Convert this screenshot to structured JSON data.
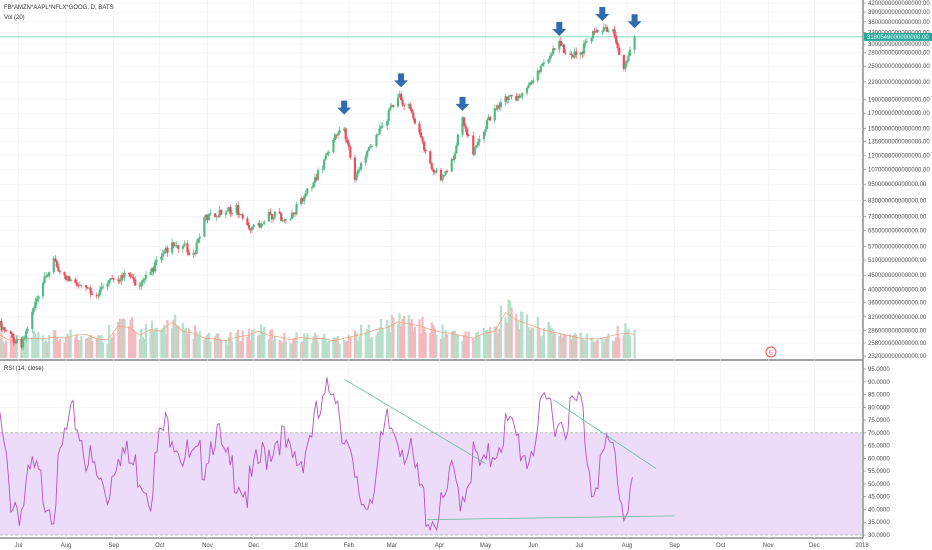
{
  "colors": {
    "up": "#53b987",
    "down": "#eb4d5c",
    "vol_up": "#b7dfc9",
    "vol_down": "#f4b8be",
    "vol_ma": "#f0a07a",
    "rsi_line": "#b452c2",
    "rsi_band": "#ecdcfa",
    "trendline": "#6bbfa0",
    "arrow": "#2f6db0",
    "price_line": "#5fd0a0",
    "price_tag": "#26a69a",
    "grid": "#eeeeee"
  },
  "legend": {
    "symbol": "FB*AMZN*AAPL*NFLX*GOOG, D, BATS",
    "volume": "Vol (20)",
    "rsi": "RSI (14, close)"
  },
  "badge": "E",
  "price_tag": "3180549000000000.00",
  "chart_data": [
    {
      "type": "candlestick",
      "title": "FB*AMZN*AAPL*NFLX*GOOG, D, BATS",
      "price_scale_labels": [
        "4200000000000000.00",
        "3900000000000000.00",
        "3600000000000000.00",
        "3300000000000000.00",
        "3000000000000000.00",
        "2800000000000000.00",
        "2500000000000000.00",
        "2200000000000000.00",
        "1900000000000000.00",
        "1700000000000000.00",
        "1500000000000000.00",
        "1350000000000000.00",
        "1200000000000000.00",
        "1070000000000000.00",
        "950000000000000.00",
        "830000000000000.00",
        "730000000000000.00",
        "650000000000000.00",
        "570000000000000.00",
        "510000000000000.00",
        "450000000000000.00",
        "400000000000000.00",
        "360000000000000.00",
        "320000000000000.00",
        "286000000000000.00",
        "258000000000000.00",
        "232000000000000.00"
      ],
      "current_price": 3180549000000000,
      "x_labels": [
        "Jul",
        "Aug",
        "Sep",
        "Oct",
        "Nov",
        "Dec",
        "2018",
        "Feb",
        "Mar",
        "Apr",
        "May",
        "Jun",
        "Jul",
        "Aug",
        "Sep",
        "Oct",
        "Nov",
        "Dec",
        "2018"
      ],
      "annotations": [
        "arrow",
        "arrow",
        "arrow",
        "arrow",
        "arrow",
        "arrow"
      ],
      "close_path": [
        [
          "2017-06-19",
          300000000000000
        ],
        [
          "2017-06-26",
          275000000000000
        ],
        [
          "2017-07-03",
          250000000000000
        ],
        [
          "2017-07-10",
          330000000000000
        ],
        [
          "2017-07-17",
          420000000000000
        ],
        [
          "2017-07-24",
          500000000000000
        ],
        [
          "2017-07-31",
          440000000000000
        ],
        [
          "2017-08-07",
          430000000000000
        ],
        [
          "2017-08-14",
          400000000000000
        ],
        [
          "2017-08-21",
          390000000000000
        ],
        [
          "2017-08-28",
          420000000000000
        ],
        [
          "2017-09-04",
          440000000000000
        ],
        [
          "2017-09-11",
          450000000000000
        ],
        [
          "2017-09-18",
          410000000000000
        ],
        [
          "2017-09-25",
          460000000000000
        ],
        [
          "2017-10-02",
          530000000000000
        ],
        [
          "2017-10-09",
          570000000000000
        ],
        [
          "2017-10-16",
          580000000000000
        ],
        [
          "2017-10-23",
          530000000000000
        ],
        [
          "2017-10-30",
          720000000000000
        ],
        [
          "2017-11-06",
          740000000000000
        ],
        [
          "2017-11-13",
          760000000000000
        ],
        [
          "2017-11-20",
          780000000000000
        ],
        [
          "2017-11-27",
          660000000000000
        ],
        [
          "2017-12-04",
          680000000000000
        ],
        [
          "2017-12-11",
          740000000000000
        ],
        [
          "2017-12-18",
          730000000000000
        ],
        [
          "2017-12-25",
          720000000000000
        ],
        [
          "2018-01-01",
          830000000000000
        ],
        [
          "2018-01-08",
          950000000000000
        ],
        [
          "2018-01-15",
          1100000000000000
        ],
        [
          "2018-01-22",
          1400000000000000
        ],
        [
          "2018-01-29",
          1500000000000000
        ],
        [
          "2018-02-05",
          1000000000000000
        ],
        [
          "2018-02-12",
          1200000000000000
        ],
        [
          "2018-02-19",
          1450000000000000
        ],
        [
          "2018-02-26",
          1650000000000000
        ],
        [
          "2018-03-05",
          1950000000000000
        ],
        [
          "2018-03-12",
          1800000000000000
        ],
        [
          "2018-03-19",
          1450000000000000
        ],
        [
          "2018-03-26",
          1100000000000000
        ],
        [
          "2018-04-02",
          1000000000000000
        ],
        [
          "2018-04-09",
          1150000000000000
        ],
        [
          "2018-04-16",
          1600000000000000
        ],
        [
          "2018-04-23",
          1250000000000000
        ],
        [
          "2018-04-30",
          1500000000000000
        ],
        [
          "2018-05-07",
          1750000000000000
        ],
        [
          "2018-05-14",
          1900000000000000
        ],
        [
          "2018-05-21",
          1950000000000000
        ],
        [
          "2018-05-28",
          2100000000000000
        ],
        [
          "2018-06-04",
          2400000000000000
        ],
        [
          "2018-06-11",
          2700000000000000
        ],
        [
          "2018-06-18",
          3000000000000000
        ],
        [
          "2018-06-25",
          2700000000000000
        ],
        [
          "2018-07-02",
          2800000000000000
        ],
        [
          "2018-07-09",
          3200000000000000
        ],
        [
          "2018-07-16",
          3400000000000000
        ],
        [
          "2018-07-23",
          3300000000000000
        ],
        [
          "2018-07-30",
          2400000000000000
        ],
        [
          "2018-08-06",
          3150000000000000
        ]
      ]
    },
    {
      "type": "bar",
      "title": "Vol (20)",
      "series": [
        {
          "name": "Vol (20)",
          "values": [
            60,
            45,
            55,
            50,
            48,
            52,
            50,
            47,
            55,
            50,
            52,
            60,
            58,
            62,
            55,
            50,
            48,
            70,
            85,
            90,
            80,
            60,
            65,
            75,
            60,
            70,
            80,
            95,
            70,
            60,
            65,
            55,
            52,
            50,
            48,
            45,
            50,
            55,
            60,
            62,
            70,
            65,
            60,
            55,
            50,
            48,
            52,
            55,
            50,
            55,
            52,
            48,
            45,
            50,
            52,
            58,
            60,
            65,
            70,
            75,
            80,
            85,
            95,
            100,
            90,
            85,
            80,
            75,
            70,
            68,
            65,
            60,
            58,
            55,
            52,
            60,
            65,
            70,
            80,
            120,
            150,
            100,
            90,
            85,
            80,
            75,
            70,
            65,
            60,
            58,
            55,
            52,
            50,
            48,
            52,
            55,
            60,
            65,
            70,
            62
          ]
        }
      ]
    },
    {
      "type": "line",
      "title": "RSI (14, close)",
      "y_labels": [
        "95.0000",
        "90.0000",
        "85.0000",
        "80.0000",
        "75.0000",
        "70.0000",
        "65.0000",
        "60.0000",
        "55.0000",
        "50.0000",
        "45.0000",
        "40.0000",
        "35.0000",
        "30.0000"
      ],
      "ylim": [
        30,
        95
      ],
      "bands": [
        30,
        70
      ],
      "series": [
        {
          "name": "RSI",
          "x": [
            "2017-06-19",
            "2017-06-26",
            "2017-07-03",
            "2017-07-10",
            "2017-07-17",
            "2017-07-24",
            "2017-07-31",
            "2017-08-07",
            "2017-08-14",
            "2017-08-21",
            "2017-08-28",
            "2017-09-04",
            "2017-09-11",
            "2017-09-18",
            "2017-09-25",
            "2017-10-02",
            "2017-10-09",
            "2017-10-16",
            "2017-10-23",
            "2017-10-30",
            "2017-11-06",
            "2017-11-13",
            "2017-11-20",
            "2017-11-27",
            "2017-12-04",
            "2017-12-11",
            "2017-12-18",
            "2017-12-25",
            "2018-01-01",
            "2018-01-08",
            "2018-01-15",
            "2018-01-22",
            "2018-01-29",
            "2018-02-05",
            "2018-02-12",
            "2018-02-19",
            "2018-02-26",
            "2018-03-05",
            "2018-03-12",
            "2018-03-19",
            "2018-03-26",
            "2018-04-02",
            "2018-04-09",
            "2018-04-16",
            "2018-04-23",
            "2018-04-30",
            "2018-05-07",
            "2018-05-14",
            "2018-05-21",
            "2018-05-28",
            "2018-06-04",
            "2018-06-11",
            "2018-06-18",
            "2018-06-25",
            "2018-07-02",
            "2018-07-09",
            "2018-07-16",
            "2018-07-23",
            "2018-07-30",
            "2018-08-06"
          ],
          "values": [
            73,
            45,
            40,
            55,
            48,
            42,
            68,
            76,
            62,
            52,
            46,
            66,
            58,
            55,
            48,
            70,
            73,
            62,
            57,
            60,
            72,
            56,
            55,
            46,
            57,
            64,
            70,
            58,
            60,
            72,
            78,
            92,
            70,
            48,
            42,
            55,
            72,
            70,
            62,
            48,
            36,
            38,
            52,
            46,
            60,
            54,
            65,
            72,
            68,
            60,
            72,
            82,
            74,
            78,
            82,
            50,
            60,
            64,
            38,
            56
          ]
        }
      ],
      "trendlines": 3
    }
  ]
}
